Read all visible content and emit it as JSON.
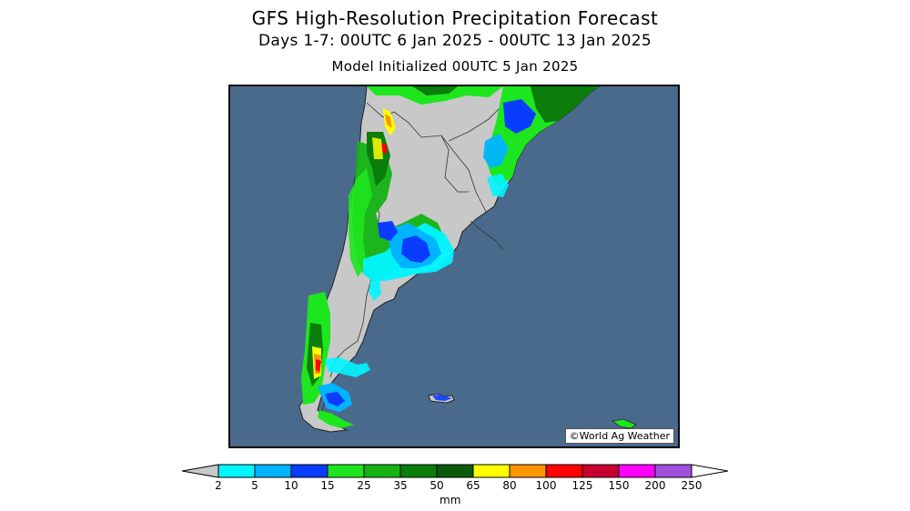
{
  "header": {
    "title": "GFS High-Resolution Precipitation Forecast",
    "subtitle": "Days 1-7: 00UTC 6 Jan 2025 - 00UTC 13 Jan 2025",
    "init": "Model Initialized 00UTC 5 Jan 2025"
  },
  "map": {
    "credit": "©World Ag Weather",
    "ocean_color": "#4a6a8c",
    "land_color": "#c8c8c8"
  },
  "legend": {
    "units": "mm",
    "ticks": [
      "2",
      "5",
      "10",
      "15",
      "25",
      "35",
      "50",
      "65",
      "80",
      "100",
      "125",
      "150",
      "200",
      "250"
    ],
    "colors": [
      "#c8c8c8",
      "#00f5ff",
      "#00b4ff",
      "#0a3cff",
      "#1ee61e",
      "#14b414",
      "#0a7d0a",
      "#0a5a0a",
      "#ffff00",
      "#ff9600",
      "#ff0000",
      "#c80032",
      "#ff00ff",
      "#a050dc"
    ]
  }
}
